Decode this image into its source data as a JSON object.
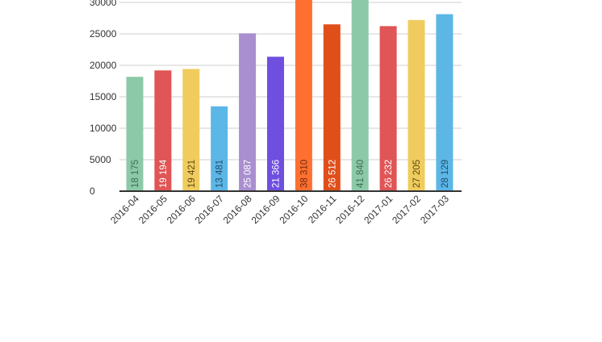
{
  "chart_data": {
    "type": "bar",
    "title": "",
    "xlabel": "",
    "ylabel": "",
    "ylim": [
      0,
      30000
    ],
    "yticks": [
      0,
      5000,
      10000,
      15000,
      20000,
      25000,
      30000
    ],
    "grid": true,
    "legend": "none",
    "categories": [
      "2016-04",
      "2016-05",
      "2016-06",
      "2016-07",
      "2016-08",
      "2016-09",
      "2016-10",
      "2016-11",
      "2016-12",
      "2017-01",
      "2017-02",
      "2017-03"
    ],
    "values": [
      18175,
      19194,
      19421,
      13481,
      25087,
      21366,
      38310,
      26512,
      41840,
      26232,
      27205,
      28129
    ],
    "value_labels": [
      "18 175",
      "19 194",
      "19 421",
      "13 481",
      "25 087",
      "21 366",
      "38 310",
      "26 512",
      "41 840",
      "26 232",
      "27 205",
      "28 129"
    ],
    "colors": [
      "#8cc9a8",
      "#e05555",
      "#f0cc5e",
      "#5cb6e6",
      "#a98fcf",
      "#6e4fe0",
      "#ff7030",
      "#e04e1a",
      "#8cc9a8",
      "#e05555",
      "#f0cc5e",
      "#5cb6e6"
    ],
    "label_colors": [
      "#3f6e55",
      "#ffffff",
      "#5d4a15",
      "#1f4f6e",
      "#ffffff",
      "#ffffff",
      "#6e2a0c",
      "#ffffff",
      "#3f6e55",
      "#ffffff",
      "#5d4a15",
      "#1f4f6e"
    ]
  }
}
